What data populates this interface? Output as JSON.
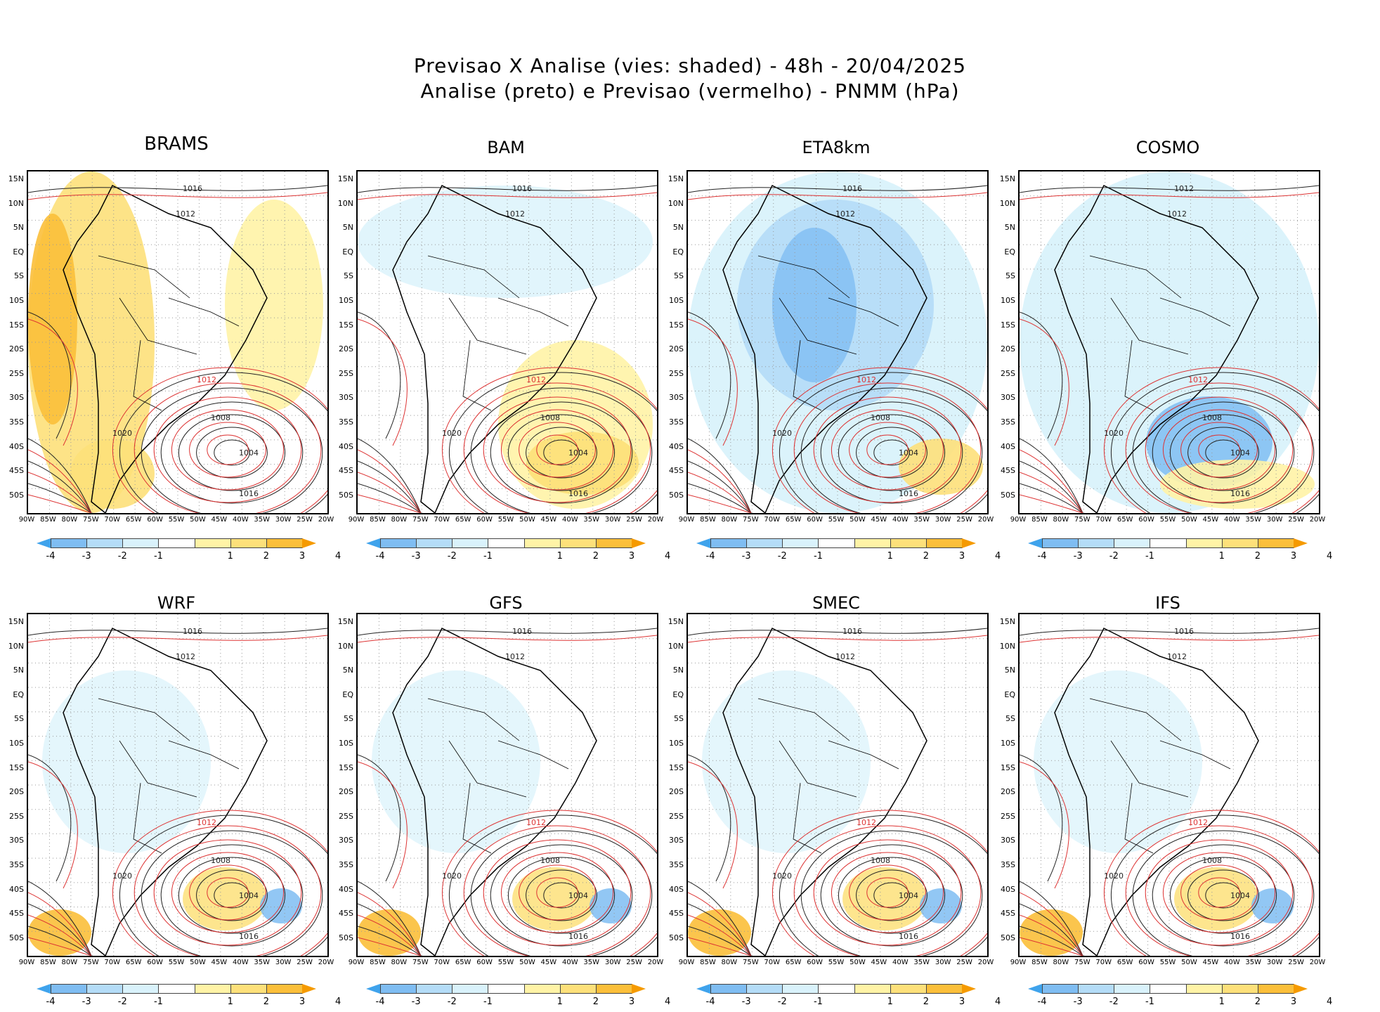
{
  "title": {
    "line1": "Previsao X Analise (vies: shaded) - 48h - 20/04/2025",
    "line2": "Analise (preto) e Previsao (vermelho) - PNMM (hPa)"
  },
  "lat_labels": [
    "15N",
    "10N",
    "5N",
    "EQ",
    "5S",
    "10S",
    "15S",
    "20S",
    "25S",
    "30S",
    "35S",
    "40S",
    "45S",
    "50S"
  ],
  "lon_labels": [
    "90W",
    "85W",
    "80W",
    "75W",
    "70W",
    "65W",
    "60W",
    "55W",
    "50W",
    "45W",
    "40W",
    "35W",
    "30W",
    "25W",
    "20W"
  ],
  "colorbar": {
    "labels": [
      "-4",
      "-3",
      "-2",
      "-1",
      "1",
      "2",
      "3",
      "4"
    ],
    "colors": [
      "#3fa3ec",
      "#7fbdf2",
      "#b4dcf7",
      "#d9f2fb",
      "#ffffff",
      "#fff3a6",
      "#fde07a",
      "#fbbf3a",
      "#f59a00"
    ]
  },
  "panels": [
    {
      "name": "BRAMS",
      "contours": {
        "c1": "1016",
        "c2": "1012",
        "c3": "1008",
        "c4": "1004",
        "c5": "1016",
        "c6": "1020"
      },
      "bias": "warm"
    },
    {
      "name": "BAM",
      "contours": {
        "c1": "1016",
        "c2": "1012",
        "c3": "1008",
        "c4": "1004",
        "c5": "1016",
        "c6": "1020"
      },
      "bias": "warmlow"
    },
    {
      "name": "ETA8km",
      "contours": {
        "c1": "1016",
        "c2": "1012",
        "c3": "1008",
        "c4": "1004",
        "c5": "1016",
        "c6": "1020"
      },
      "bias": "cold"
    },
    {
      "name": "COSMO",
      "contours": {
        "c1": "1012",
        "c2": "1012",
        "c3": "1008",
        "c4": "1004",
        "c5": "1016",
        "c6": "1020"
      },
      "bias": "coldlow"
    },
    {
      "name": "WRF",
      "contours": {
        "c1": "1016",
        "c2": "1012",
        "c3": "1008",
        "c4": "1004",
        "c5": "1016",
        "c6": "1020"
      },
      "bias": "mixed"
    },
    {
      "name": "GFS",
      "contours": {
        "c1": "1016",
        "c2": "1012",
        "c3": "1008",
        "c4": "1004",
        "c5": "1016",
        "c6": "1020"
      },
      "bias": "mixed"
    },
    {
      "name": "SMEC",
      "contours": {
        "c1": "1016",
        "c2": "1012",
        "c3": "1008",
        "c4": "1004",
        "c5": "1016",
        "c6": "1020"
      },
      "bias": "mixed"
    },
    {
      "name": "IFS",
      "contours": {
        "c1": "1016",
        "c2": "1012",
        "c3": "1008",
        "c4": "1004",
        "c5": "1016",
        "c6": "1020"
      },
      "bias": "mixed"
    }
  ]
}
